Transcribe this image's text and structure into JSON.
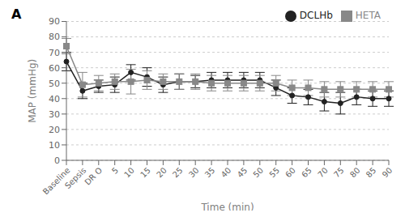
{
  "chart_data": {
    "type": "line",
    "title": "A",
    "xlabel": "Time  (min)",
    "ylabel": "MAP (mmHg)",
    "categories": [
      "Baseline",
      "Sepsis",
      "DR O",
      "5",
      "10",
      "15",
      "20",
      "25",
      "30",
      "35",
      "40",
      "45",
      "50",
      "55",
      "60",
      "65",
      "70",
      "75",
      "80",
      "85",
      "90"
    ],
    "series": [
      {
        "name": "DCLHb",
        "color": "#222222",
        "marker": "circle",
        "values": [
          64,
          45,
          48,
          49,
          57,
          54,
          49,
          51,
          51,
          52,
          52,
          52,
          52,
          47,
          42,
          41,
          38,
          37,
          41,
          40,
          40
        ],
        "errors": [
          6,
          5,
          4,
          5,
          5,
          6,
          5,
          5,
          4,
          5,
          5,
          5,
          5,
          5,
          5,
          5,
          6,
          7,
          5,
          5,
          5
        ]
      },
      {
        "name": "HETA",
        "color": "#888888",
        "marker": "square",
        "values": [
          74,
          49,
          50,
          51,
          51,
          52,
          51,
          51,
          51,
          50,
          50,
          50,
          50,
          50,
          47,
          47,
          46,
          46,
          46,
          46,
          46
        ],
        "errors": [
          5,
          8,
          5,
          5,
          8,
          6,
          5,
          5,
          5,
          5,
          5,
          5,
          5,
          5,
          5,
          5,
          5,
          5,
          5,
          5,
          5
        ]
      }
    ],
    "ylim": [
      0,
      90
    ],
    "yticks": [
      0,
      10,
      20,
      30,
      40,
      50,
      60,
      70,
      80,
      90
    ],
    "grid": true,
    "legend": "upper right"
  }
}
